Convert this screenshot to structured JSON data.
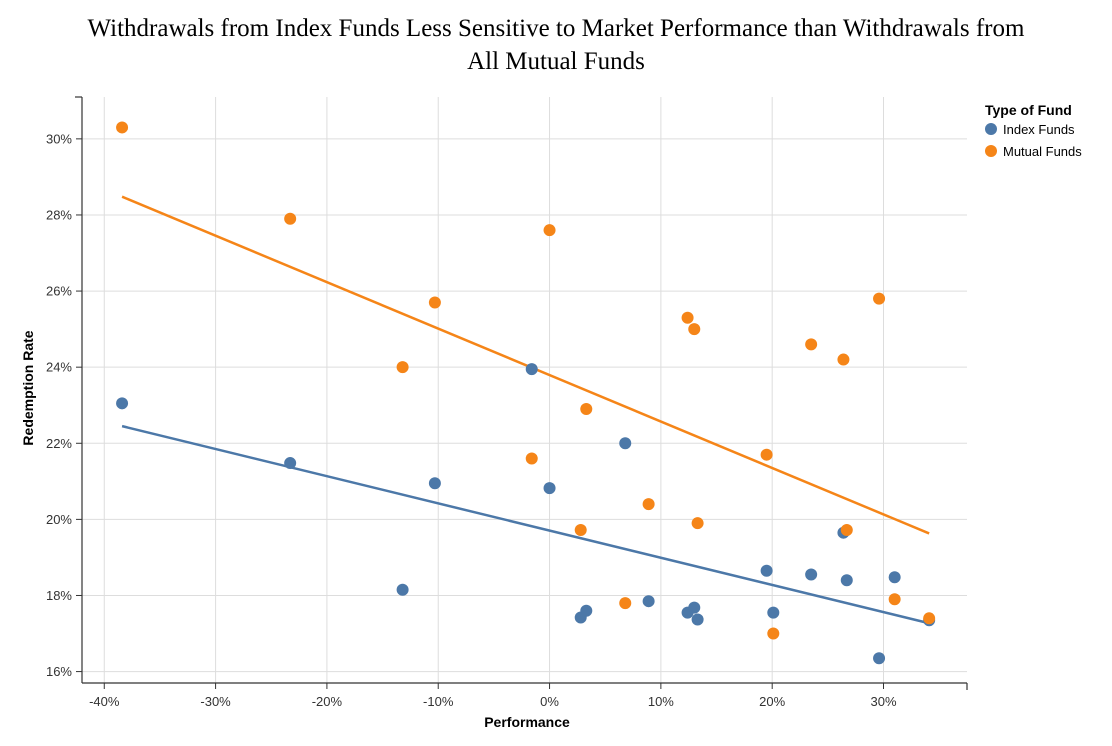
{
  "chart_data": {
    "type": "scatter",
    "title_lines": [
      "Withdrawals from Index Funds Less Sensitive to Market Performance than Withdrawals from",
      "All Mutual Funds"
    ],
    "xlabel": "Performance",
    "ylabel": "Redemption Rate",
    "xlim": [
      -0.42,
      0.375
    ],
    "ylim": [
      0.157,
      0.311
    ],
    "x_ticks": [
      -0.4,
      -0.3,
      -0.2,
      -0.1,
      0.0,
      0.1,
      0.2,
      0.3
    ],
    "x_tick_labels": [
      "-40%",
      "-30%",
      "-20%",
      "-10%",
      "0%",
      "10%",
      "20%",
      "30%"
    ],
    "y_ticks": [
      0.16,
      0.18,
      0.2,
      0.22,
      0.24,
      0.26,
      0.28,
      0.3
    ],
    "y_tick_labels": [
      "16%",
      "18%",
      "20%",
      "22%",
      "24%",
      "26%",
      "28%",
      "30%"
    ],
    "grid": true,
    "legend": {
      "title": "Type of Fund",
      "placement": "top-right"
    },
    "series": [
      {
        "name": "Index Funds",
        "color": "#4c78a8",
        "points": [
          [
            -0.384,
            0.2305
          ],
          [
            -0.233,
            0.2148
          ],
          [
            -0.132,
            0.1815
          ],
          [
            -0.103,
            0.2095
          ],
          [
            -0.016,
            0.2395
          ],
          [
            0.0,
            0.2082
          ],
          [
            0.028,
            0.1742
          ],
          [
            0.033,
            0.176
          ],
          [
            0.068,
            0.22
          ],
          [
            0.089,
            0.1785
          ],
          [
            0.124,
            0.1755
          ],
          [
            0.13,
            0.1768
          ],
          [
            0.133,
            0.1737
          ],
          [
            0.195,
            0.1865
          ],
          [
            0.201,
            0.1755
          ],
          [
            0.235,
            0.1855
          ],
          [
            0.264,
            0.1965
          ],
          [
            0.267,
            0.184
          ],
          [
            0.296,
            0.1635
          ],
          [
            0.31,
            0.1848
          ],
          [
            0.341,
            0.1735
          ]
        ],
        "trend": [
          [
            -0.384,
            0.2245
          ],
          [
            0.341,
            0.1727
          ]
        ]
      },
      {
        "name": "Mutual Funds",
        "color": "#f58518",
        "points": [
          [
            -0.384,
            0.303
          ],
          [
            -0.233,
            0.279
          ],
          [
            -0.132,
            0.24
          ],
          [
            -0.103,
            0.257
          ],
          [
            -0.016,
            0.216
          ],
          [
            0.0,
            0.276
          ],
          [
            0.028,
            0.1972
          ],
          [
            0.033,
            0.229
          ],
          [
            0.068,
            0.178
          ],
          [
            0.089,
            0.204
          ],
          [
            0.124,
            0.253
          ],
          [
            0.13,
            0.25
          ],
          [
            0.133,
            0.199
          ],
          [
            0.195,
            0.217
          ],
          [
            0.201,
            0.17
          ],
          [
            0.235,
            0.246
          ],
          [
            0.264,
            0.242
          ],
          [
            0.267,
            0.1972
          ],
          [
            0.296,
            0.258
          ],
          [
            0.31,
            0.179
          ],
          [
            0.341,
            0.174
          ]
        ],
        "trend": [
          [
            -0.384,
            0.2848
          ],
          [
            0.341,
            0.1963
          ]
        ]
      }
    ]
  }
}
